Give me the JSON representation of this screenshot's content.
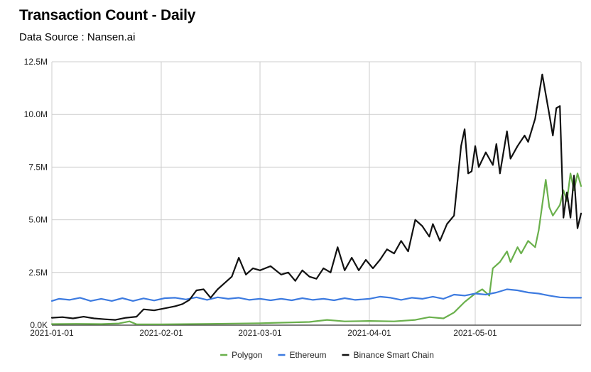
{
  "chart_data": {
    "type": "line",
    "title": "Transaction Count - Daily",
    "subtitle": "Data Source : Nansen.ai",
    "xlabel": "",
    "ylabel": "",
    "x_start": "2021-01-01",
    "x_end": "2021-05-31",
    "xlim": [
      "2021-01-01",
      "2021-05-31"
    ],
    "ylim": [
      0,
      12500000
    ],
    "y_ticks": [
      0,
      2500000,
      5000000,
      7500000,
      10000000,
      12500000
    ],
    "y_tick_labels": [
      "0.0K",
      "2.5M",
      "5.0M",
      "7.5M",
      "10.0M",
      "12.5M"
    ],
    "x_ticks": [
      "2021-01-01",
      "2021-02-01",
      "2021-03-01",
      "2021-04-01",
      "2021-05-01"
    ],
    "x_tick_labels": [
      "2021-01-01",
      "2021-02-01",
      "2021-03-01",
      "2021-04-01",
      "2021-05-01"
    ],
    "grid": true,
    "legend_position": "bottom",
    "series": [
      {
        "name": "Polygon",
        "color": "#6ab04c",
        "points": [
          [
            "2021-01-01",
            50000
          ],
          [
            "2021-01-08",
            60000
          ],
          [
            "2021-01-15",
            50000
          ],
          [
            "2021-01-20",
            80000
          ],
          [
            "2021-01-23",
            180000
          ],
          [
            "2021-01-25",
            40000
          ],
          [
            "2021-02-01",
            40000
          ],
          [
            "2021-02-15",
            60000
          ],
          [
            "2021-03-01",
            90000
          ],
          [
            "2021-03-15",
            150000
          ],
          [
            "2021-03-20",
            250000
          ],
          [
            "2021-03-25",
            180000
          ],
          [
            "2021-04-01",
            200000
          ],
          [
            "2021-04-08",
            180000
          ],
          [
            "2021-04-14",
            250000
          ],
          [
            "2021-04-18",
            380000
          ],
          [
            "2021-04-22",
            320000
          ],
          [
            "2021-04-25",
            600000
          ],
          [
            "2021-04-28",
            1100000
          ],
          [
            "2021-05-01",
            1500000
          ],
          [
            "2021-05-03",
            1700000
          ],
          [
            "2021-05-05",
            1400000
          ],
          [
            "2021-05-06",
            2700000
          ],
          [
            "2021-05-08",
            3000000
          ],
          [
            "2021-05-10",
            3500000
          ],
          [
            "2021-05-11",
            3000000
          ],
          [
            "2021-05-13",
            3700000
          ],
          [
            "2021-05-14",
            3400000
          ],
          [
            "2021-05-16",
            4000000
          ],
          [
            "2021-05-18",
            3700000
          ],
          [
            "2021-05-19",
            4500000
          ],
          [
            "2021-05-21",
            6900000
          ],
          [
            "2021-05-22",
            5600000
          ],
          [
            "2021-05-23",
            5200000
          ],
          [
            "2021-05-25",
            5700000
          ],
          [
            "2021-05-26",
            6400000
          ],
          [
            "2021-05-27",
            5900000
          ],
          [
            "2021-05-28",
            7200000
          ],
          [
            "2021-05-29",
            6400000
          ],
          [
            "2021-05-30",
            7200000
          ],
          [
            "2021-05-31",
            6600000
          ]
        ]
      },
      {
        "name": "Ethereum",
        "color": "#3d7be0",
        "points": [
          [
            "2021-01-01",
            1150000
          ],
          [
            "2021-01-03",
            1250000
          ],
          [
            "2021-01-06",
            1200000
          ],
          [
            "2021-01-09",
            1300000
          ],
          [
            "2021-01-12",
            1150000
          ],
          [
            "2021-01-15",
            1250000
          ],
          [
            "2021-01-18",
            1150000
          ],
          [
            "2021-01-21",
            1280000
          ],
          [
            "2021-01-24",
            1150000
          ],
          [
            "2021-01-27",
            1270000
          ],
          [
            "2021-01-30",
            1170000
          ],
          [
            "2021-02-02",
            1280000
          ],
          [
            "2021-02-05",
            1300000
          ],
          [
            "2021-02-08",
            1220000
          ],
          [
            "2021-02-11",
            1320000
          ],
          [
            "2021-02-14",
            1200000
          ],
          [
            "2021-02-17",
            1320000
          ],
          [
            "2021-02-20",
            1250000
          ],
          [
            "2021-02-23",
            1300000
          ],
          [
            "2021-02-26",
            1200000
          ],
          [
            "2021-03-01",
            1250000
          ],
          [
            "2021-03-04",
            1180000
          ],
          [
            "2021-03-07",
            1250000
          ],
          [
            "2021-03-10",
            1180000
          ],
          [
            "2021-03-13",
            1280000
          ],
          [
            "2021-03-16",
            1200000
          ],
          [
            "2021-03-19",
            1250000
          ],
          [
            "2021-03-22",
            1180000
          ],
          [
            "2021-03-25",
            1280000
          ],
          [
            "2021-03-28",
            1200000
          ],
          [
            "2021-04-01",
            1250000
          ],
          [
            "2021-04-04",
            1350000
          ],
          [
            "2021-04-07",
            1300000
          ],
          [
            "2021-04-10",
            1200000
          ],
          [
            "2021-04-13",
            1300000
          ],
          [
            "2021-04-16",
            1250000
          ],
          [
            "2021-04-19",
            1350000
          ],
          [
            "2021-04-22",
            1250000
          ],
          [
            "2021-04-25",
            1450000
          ],
          [
            "2021-04-28",
            1400000
          ],
          [
            "2021-05-01",
            1500000
          ],
          [
            "2021-05-04",
            1450000
          ],
          [
            "2021-05-07",
            1550000
          ],
          [
            "2021-05-10",
            1700000
          ],
          [
            "2021-05-13",
            1650000
          ],
          [
            "2021-05-16",
            1550000
          ],
          [
            "2021-05-19",
            1500000
          ],
          [
            "2021-05-22",
            1400000
          ],
          [
            "2021-05-25",
            1320000
          ],
          [
            "2021-05-28",
            1300000
          ],
          [
            "2021-05-31",
            1300000
          ]
        ]
      },
      {
        "name": "Binance Smart Chain",
        "color": "#111111",
        "points": [
          [
            "2021-01-01",
            350000
          ],
          [
            "2021-01-04",
            380000
          ],
          [
            "2021-01-07",
            320000
          ],
          [
            "2021-01-10",
            400000
          ],
          [
            "2021-01-13",
            320000
          ],
          [
            "2021-01-16",
            280000
          ],
          [
            "2021-01-19",
            250000
          ],
          [
            "2021-01-22",
            350000
          ],
          [
            "2021-01-25",
            400000
          ],
          [
            "2021-01-27",
            750000
          ],
          [
            "2021-01-30",
            700000
          ],
          [
            "2021-02-02",
            800000
          ],
          [
            "2021-02-05",
            900000
          ],
          [
            "2021-02-07",
            1000000
          ],
          [
            "2021-02-09",
            1200000
          ],
          [
            "2021-02-11",
            1650000
          ],
          [
            "2021-02-13",
            1700000
          ],
          [
            "2021-02-15",
            1300000
          ],
          [
            "2021-02-17",
            1700000
          ],
          [
            "2021-02-19",
            2000000
          ],
          [
            "2021-02-21",
            2300000
          ],
          [
            "2021-02-23",
            3200000
          ],
          [
            "2021-02-25",
            2400000
          ],
          [
            "2021-02-27",
            2700000
          ],
          [
            "2021-03-01",
            2600000
          ],
          [
            "2021-03-04",
            2800000
          ],
          [
            "2021-03-07",
            2400000
          ],
          [
            "2021-03-09",
            2500000
          ],
          [
            "2021-03-11",
            2100000
          ],
          [
            "2021-03-13",
            2600000
          ],
          [
            "2021-03-15",
            2300000
          ],
          [
            "2021-03-17",
            2200000
          ],
          [
            "2021-03-19",
            2700000
          ],
          [
            "2021-03-21",
            2500000
          ],
          [
            "2021-03-23",
            3700000
          ],
          [
            "2021-03-25",
            2600000
          ],
          [
            "2021-03-27",
            3200000
          ],
          [
            "2021-03-29",
            2600000
          ],
          [
            "2021-03-31",
            3100000
          ],
          [
            "2021-04-02",
            2700000
          ],
          [
            "2021-04-04",
            3100000
          ],
          [
            "2021-04-06",
            3600000
          ],
          [
            "2021-04-08",
            3400000
          ],
          [
            "2021-04-10",
            4000000
          ],
          [
            "2021-04-12",
            3500000
          ],
          [
            "2021-04-14",
            5000000
          ],
          [
            "2021-04-16",
            4700000
          ],
          [
            "2021-04-18",
            4200000
          ],
          [
            "2021-04-19",
            4800000
          ],
          [
            "2021-04-21",
            4000000
          ],
          [
            "2021-04-23",
            4800000
          ],
          [
            "2021-04-25",
            5200000
          ],
          [
            "2021-04-27",
            8500000
          ],
          [
            "2021-04-28",
            9300000
          ],
          [
            "2021-04-29",
            7200000
          ],
          [
            "2021-04-30",
            7300000
          ],
          [
            "2021-05-01",
            8500000
          ],
          [
            "2021-05-02",
            7500000
          ],
          [
            "2021-05-04",
            8200000
          ],
          [
            "2021-05-06",
            7600000
          ],
          [
            "2021-05-07",
            8600000
          ],
          [
            "2021-05-08",
            7200000
          ],
          [
            "2021-05-10",
            9200000
          ],
          [
            "2021-05-11",
            7900000
          ],
          [
            "2021-05-13",
            8500000
          ],
          [
            "2021-05-15",
            9000000
          ],
          [
            "2021-05-16",
            8700000
          ],
          [
            "2021-05-18",
            9800000
          ],
          [
            "2021-05-20",
            11900000
          ],
          [
            "2021-05-22",
            10000000
          ],
          [
            "2021-05-23",
            9000000
          ],
          [
            "2021-05-24",
            10300000
          ],
          [
            "2021-05-25",
            10400000
          ],
          [
            "2021-05-26",
            5100000
          ],
          [
            "2021-05-27",
            6300000
          ],
          [
            "2021-05-28",
            5100000
          ],
          [
            "2021-05-29",
            7100000
          ],
          [
            "2021-05-30",
            4600000
          ],
          [
            "2021-05-31",
            5300000
          ]
        ]
      }
    ]
  }
}
